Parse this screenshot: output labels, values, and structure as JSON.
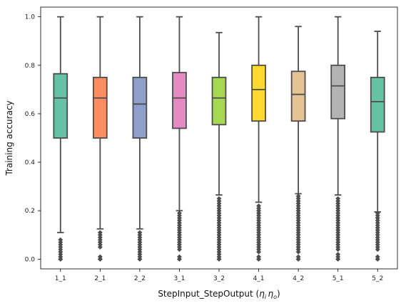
{
  "chart_data": {
    "type": "box",
    "xlabel": "StepInput_StepOutput (",
    "xlabel_symbols": [
      "η",
      "i",
      "η",
      "o"
    ],
    "xlabel_close": ")",
    "ylabel": "Training accuracy",
    "ylim": [
      -0.04,
      1.04
    ],
    "yticks": [
      0.0,
      0.2,
      0.4,
      0.6,
      0.8,
      1.0
    ],
    "ytick_labels": [
      "0.0",
      "0.2",
      "0.4",
      "0.6",
      "0.8",
      "1.0"
    ],
    "categories": [
      "1_1",
      "2_1",
      "2_2",
      "3_1",
      "3_2",
      "4_1",
      "4_2",
      "5_1",
      "5_2"
    ],
    "colors": [
      "#66c2a5",
      "#fc8d62",
      "#8da0cb",
      "#e78ac3",
      "#a6d854",
      "#ffd92f",
      "#e5c494",
      "#b3b3b3",
      "#66c2a5"
    ],
    "line_color": "#4d4d4d",
    "grid": false,
    "legend": "none",
    "boxes": [
      {
        "whislo": 0.11,
        "q1": 0.5,
        "med": 0.665,
        "q3": 0.765,
        "whishi": 1.0,
        "fliers": [
          0.0,
          0.0,
          0.0,
          0.01,
          0.02,
          0.03,
          0.04,
          0.05,
          0.06,
          0.07,
          0.08
        ]
      },
      {
        "whislo": 0.125,
        "q1": 0.5,
        "med": 0.665,
        "q3": 0.75,
        "whishi": 1.0,
        "fliers": [
          0.0,
          0.0,
          0.0,
          0.01,
          0.05,
          0.06,
          0.07,
          0.08,
          0.09,
          0.1,
          0.11
        ]
      },
      {
        "whislo": 0.125,
        "q1": 0.5,
        "med": 0.64,
        "q3": 0.75,
        "whishi": 1.0,
        "fliers": [
          0.0,
          0.0,
          0.01,
          0.02,
          0.03,
          0.04,
          0.05,
          0.06,
          0.07,
          0.08,
          0.09,
          0.1,
          0.11
        ]
      },
      {
        "whislo": 0.2,
        "q1": 0.54,
        "med": 0.665,
        "q3": 0.77,
        "whishi": 1.0,
        "fliers": [
          0.0,
          0.0,
          0.01,
          0.04,
          0.05,
          0.06,
          0.07,
          0.08,
          0.09,
          0.1,
          0.11,
          0.12,
          0.13,
          0.14,
          0.15,
          0.16,
          0.17,
          0.18,
          0.19
        ]
      },
      {
        "whislo": 0.265,
        "q1": 0.555,
        "med": 0.665,
        "q3": 0.75,
        "whishi": 0.935,
        "fliers": [
          0.0,
          0.0,
          0.01,
          0.02,
          0.03,
          0.04,
          0.05,
          0.06,
          0.07,
          0.08,
          0.09,
          0.1,
          0.11,
          0.12,
          0.13,
          0.14,
          0.15,
          0.16,
          0.17,
          0.18,
          0.19,
          0.2,
          0.21,
          0.22,
          0.23,
          0.24,
          0.25
        ]
      },
      {
        "whislo": 0.235,
        "q1": 0.57,
        "med": 0.7,
        "q3": 0.8,
        "whishi": 1.0,
        "fliers": [
          0.0,
          0.0,
          0.01,
          0.03,
          0.04,
          0.05,
          0.06,
          0.07,
          0.08,
          0.09,
          0.1,
          0.11,
          0.12,
          0.13,
          0.14,
          0.15,
          0.16,
          0.17,
          0.18,
          0.19,
          0.2,
          0.21,
          0.22
        ]
      },
      {
        "whislo": 0.27,
        "q1": 0.57,
        "med": 0.68,
        "q3": 0.775,
        "whishi": 0.96,
        "fliers": [
          0.0,
          0.0,
          0.01,
          0.03,
          0.04,
          0.05,
          0.06,
          0.07,
          0.08,
          0.09,
          0.1,
          0.11,
          0.12,
          0.13,
          0.14,
          0.15,
          0.16,
          0.17,
          0.18,
          0.19,
          0.2,
          0.21,
          0.22,
          0.23,
          0.24,
          0.25,
          0.26
        ]
      },
      {
        "whislo": 0.265,
        "q1": 0.58,
        "med": 0.715,
        "q3": 0.8,
        "whishi": 1.0,
        "fliers": [
          0.0,
          0.0,
          0.01,
          0.02,
          0.04,
          0.05,
          0.06,
          0.07,
          0.08,
          0.09,
          0.1,
          0.11,
          0.12,
          0.13,
          0.14,
          0.15,
          0.16,
          0.17,
          0.18,
          0.19,
          0.2,
          0.21,
          0.22,
          0.23,
          0.24,
          0.25
        ]
      },
      {
        "whislo": 0.195,
        "q1": 0.525,
        "med": 0.65,
        "q3": 0.75,
        "whishi": 0.94,
        "fliers": [
          0.0,
          0.0,
          0.01,
          0.04,
          0.05,
          0.06,
          0.07,
          0.08,
          0.09,
          0.1,
          0.11,
          0.12,
          0.13,
          0.14,
          0.15,
          0.16,
          0.17,
          0.18,
          0.19
        ]
      }
    ]
  }
}
